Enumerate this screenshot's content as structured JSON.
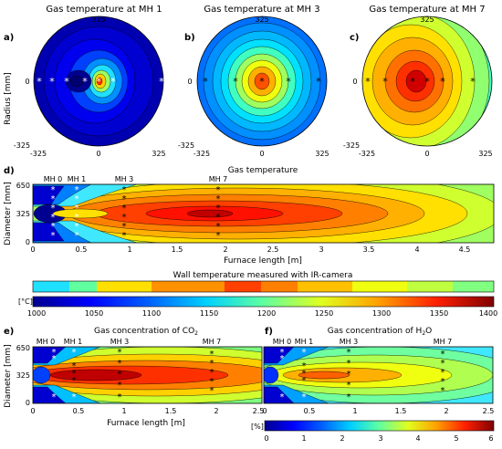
{
  "colors": {
    "jet": [
      "#00008f",
      "#0000ff",
      "#0080ff",
      "#00ffff",
      "#80ff80",
      "#ffff00",
      "#ff8000",
      "#ff0000",
      "#800000"
    ],
    "star_light": "#ffffff",
    "star_dark": "#000000"
  },
  "panel_a": {
    "letter": "a)",
    "title": "Gas temperature at MH 1",
    "ylabel": "Radius [mm]"
  },
  "panel_b": {
    "letter": "b)",
    "title": "Gas temperature at MH 3"
  },
  "panel_c": {
    "letter": "c)",
    "title": "Gas temperature at MH 7"
  },
  "polar_ticks": {
    "top": "325",
    "bottom": "-325",
    "zero": "0",
    "left": "-325",
    "right": "325"
  },
  "panel_d": {
    "letter": "d)",
    "title": "Gas temperature",
    "ylabel": "Diameter [mm]",
    "xlabel": "Furnace length [m]",
    "mh_labels": [
      "MH 0",
      "MH 1",
      "MH 3",
      "MH 7"
    ],
    "xticks": [
      "0",
      "0.5",
      "1",
      "1.5",
      "2",
      "2.5",
      "3",
      "3.5",
      "4",
      "4.5"
    ],
    "yticks": [
      "650",
      "325",
      "0"
    ]
  },
  "wall": {
    "title": "Wall temperature measured with IR-camera"
  },
  "colorbar_temp": {
    "unit": "[°C]",
    "ticks": [
      "1000",
      "1050",
      "1100",
      "1150",
      "1200",
      "1250",
      "1300",
      "1350",
      "1400"
    ]
  },
  "panel_e": {
    "letter": "e)",
    "title": "Gas concentration of CO",
    "title_sub": "2",
    "ylabel": "Diameter [mm]",
    "xlabel": "Furnace length [m]",
    "mh_labels": [
      "MH 0",
      "MH 1",
      "MH 3",
      "MH 7"
    ],
    "xticks": [
      "0",
      "0.5",
      "1",
      "1.5",
      "2",
      "2.5"
    ],
    "yticks": [
      "650",
      "325",
      "0"
    ]
  },
  "panel_f": {
    "letter": "f)",
    "title": "Gas concentration of H",
    "title_sub": "2",
    "title_end": "O",
    "mh_labels": [
      "MH 0",
      "MH 1",
      "MH 3",
      "MH 7"
    ],
    "xticks": [
      "0",
      "0.5",
      "1",
      "1.5",
      "2",
      "2.5"
    ]
  },
  "colorbar_conc": {
    "unit": "[%]",
    "ticks": [
      "0",
      "1",
      "2",
      "3",
      "4",
      "5",
      "6"
    ]
  },
  "chart_data": [
    {
      "type": "heatmap",
      "title": "Gas temperature at MH 1",
      "ylabel": "Radius [mm]",
      "xlim": [
        -325,
        325
      ],
      "ylim": [
        -325,
        325
      ]
    },
    {
      "type": "heatmap",
      "title": "Gas temperature at MH 3",
      "xlim": [
        -325,
        325
      ],
      "ylim": [
        -325,
        325
      ]
    },
    {
      "type": "heatmap",
      "title": "Gas temperature at MH 7",
      "xlim": [
        -325,
        325
      ],
      "ylim": [
        -325,
        325
      ]
    },
    {
      "type": "heatmap",
      "title": "Gas temperature",
      "xlabel": "Furnace length [m]",
      "ylabel": "Diameter [mm]",
      "xlim": [
        0,
        4.8
      ],
      "ylim": [
        0,
        650
      ],
      "probe_positions": [
        "MH 0",
        "MH 1",
        "MH 3",
        "MH 7"
      ],
      "colorbar_range": [
        1000,
        1400
      ],
      "colorbar_unit": "°C"
    },
    {
      "type": "heatmap",
      "title": "Wall temperature measured with IR-camera",
      "colorbar_range": [
        1000,
        1400
      ]
    },
    {
      "type": "heatmap",
      "title": "Gas concentration of CO2",
      "xlabel": "Furnace length [m]",
      "ylabel": "Diameter [mm]",
      "xlim": [
        0,
        2.5
      ],
      "ylim": [
        0,
        650
      ],
      "colorbar_range": [
        0,
        6
      ],
      "colorbar_unit": "%"
    },
    {
      "type": "heatmap",
      "title": "Gas concentration of H2O",
      "xlim": [
        0,
        2.5
      ],
      "ylim": [
        0,
        650
      ],
      "colorbar_range": [
        0,
        6
      ],
      "colorbar_unit": "%"
    }
  ]
}
